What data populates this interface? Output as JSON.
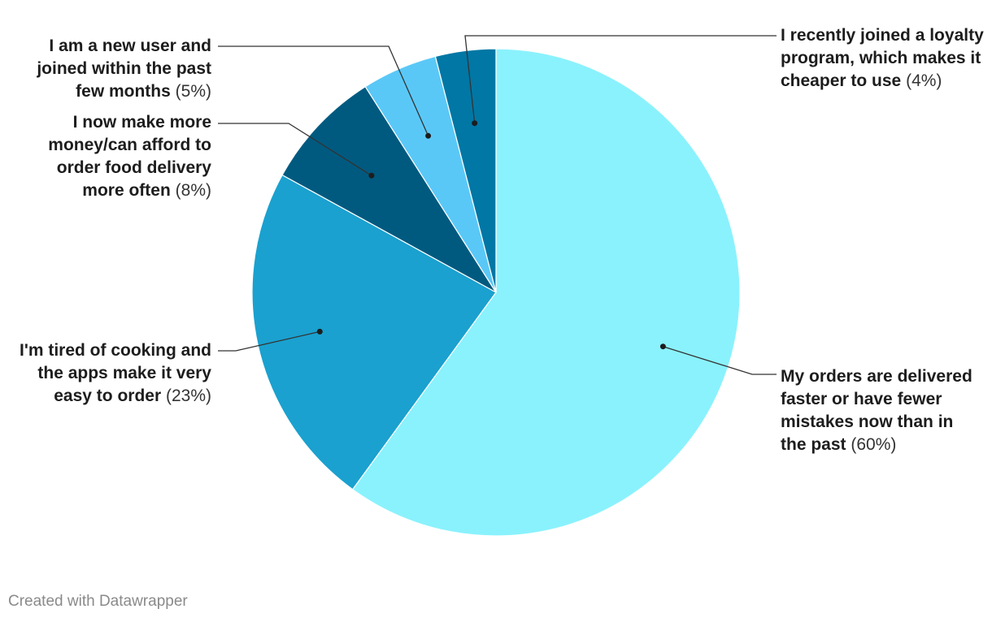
{
  "chart_data": {
    "type": "pie",
    "slices": [
      {
        "name": "My orders are delivered faster or have fewer mistakes now than in the past",
        "percent_label": "(60%)",
        "value": 60,
        "color": "#8af2fd"
      },
      {
        "name": "I'm tired of cooking and the apps make it very easy to order",
        "percent_label": "(23%)",
        "value": 23,
        "color": "#1aa1cf"
      },
      {
        "name": "I now make more money/can afford to order food delivery more often",
        "percent_label": "(8%)",
        "value": 8,
        "color": "#005a80"
      },
      {
        "name": "I am a new user and joined within the past few months",
        "percent_label": "(5%)",
        "value": 5,
        "color": "#5ac8f7"
      },
      {
        "name": "I recently joined a loyalty program, which makes it cheaper to use",
        "percent_label": "(4%)",
        "value": 4,
        "color": "#0077a5"
      }
    ]
  },
  "credit": "Created with Datawrapper"
}
